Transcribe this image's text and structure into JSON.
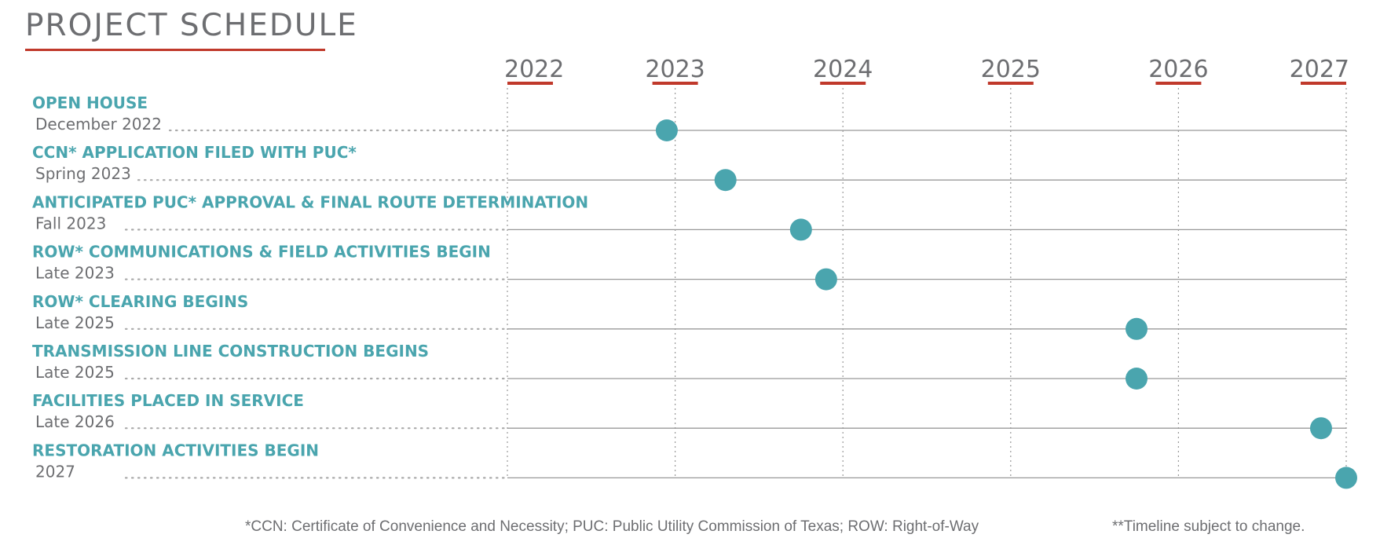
{
  "title": "PROJECT SCHEDULE",
  "colors": {
    "accent": "#c0392b",
    "marker": "#4aa5ae",
    "text": "#6d6e71",
    "rule": "#999999"
  },
  "chart_data": {
    "type": "scatter",
    "title": "PROJECT SCHEDULE",
    "x_axis": {
      "unit": "year",
      "ticks": [
        "2022",
        "2023",
        "2024",
        "2025",
        "2026",
        "2027"
      ],
      "range": [
        2022,
        2027
      ]
    },
    "events": [
      {
        "label": "OPEN HOUSE",
        "date_label": "December 2022",
        "x": 2022.95
      },
      {
        "label": "CCN* APPLICATION FILED WITH PUC*",
        "date_label": "Spring 2023",
        "x": 2023.3
      },
      {
        "label": "ANTICIPATED PUC* APPROVAL & FINAL ROUTE DETERMINATION",
        "date_label": "Fall 2023",
        "x": 2023.75
      },
      {
        "label": "ROW* COMMUNICATIONS & FIELD ACTIVITIES BEGIN",
        "date_label": "Late 2023",
        "x": 2023.9
      },
      {
        "label": "ROW* CLEARING BEGINS",
        "date_label": "Late 2025",
        "x": 2025.75
      },
      {
        "label": "TRANSMISSION LINE CONSTRUCTION BEGINS",
        "date_label": "Late 2025",
        "x": 2025.75
      },
      {
        "label": "FACILITIES PLACED IN SERVICE",
        "date_label": "Late 2026",
        "x": 2026.85
      },
      {
        "label": "RESTORATION ACTIVITIES BEGIN",
        "date_label": "2027",
        "x": 2027.0
      }
    ],
    "grid": true
  },
  "footnotes": {
    "definitions": "*CCN: Certificate of Convenience and Necessity; PUC: Public Utility Commission of Texas; ROW: Right-of-Way",
    "disclaimer": "**Timeline subject to change."
  }
}
